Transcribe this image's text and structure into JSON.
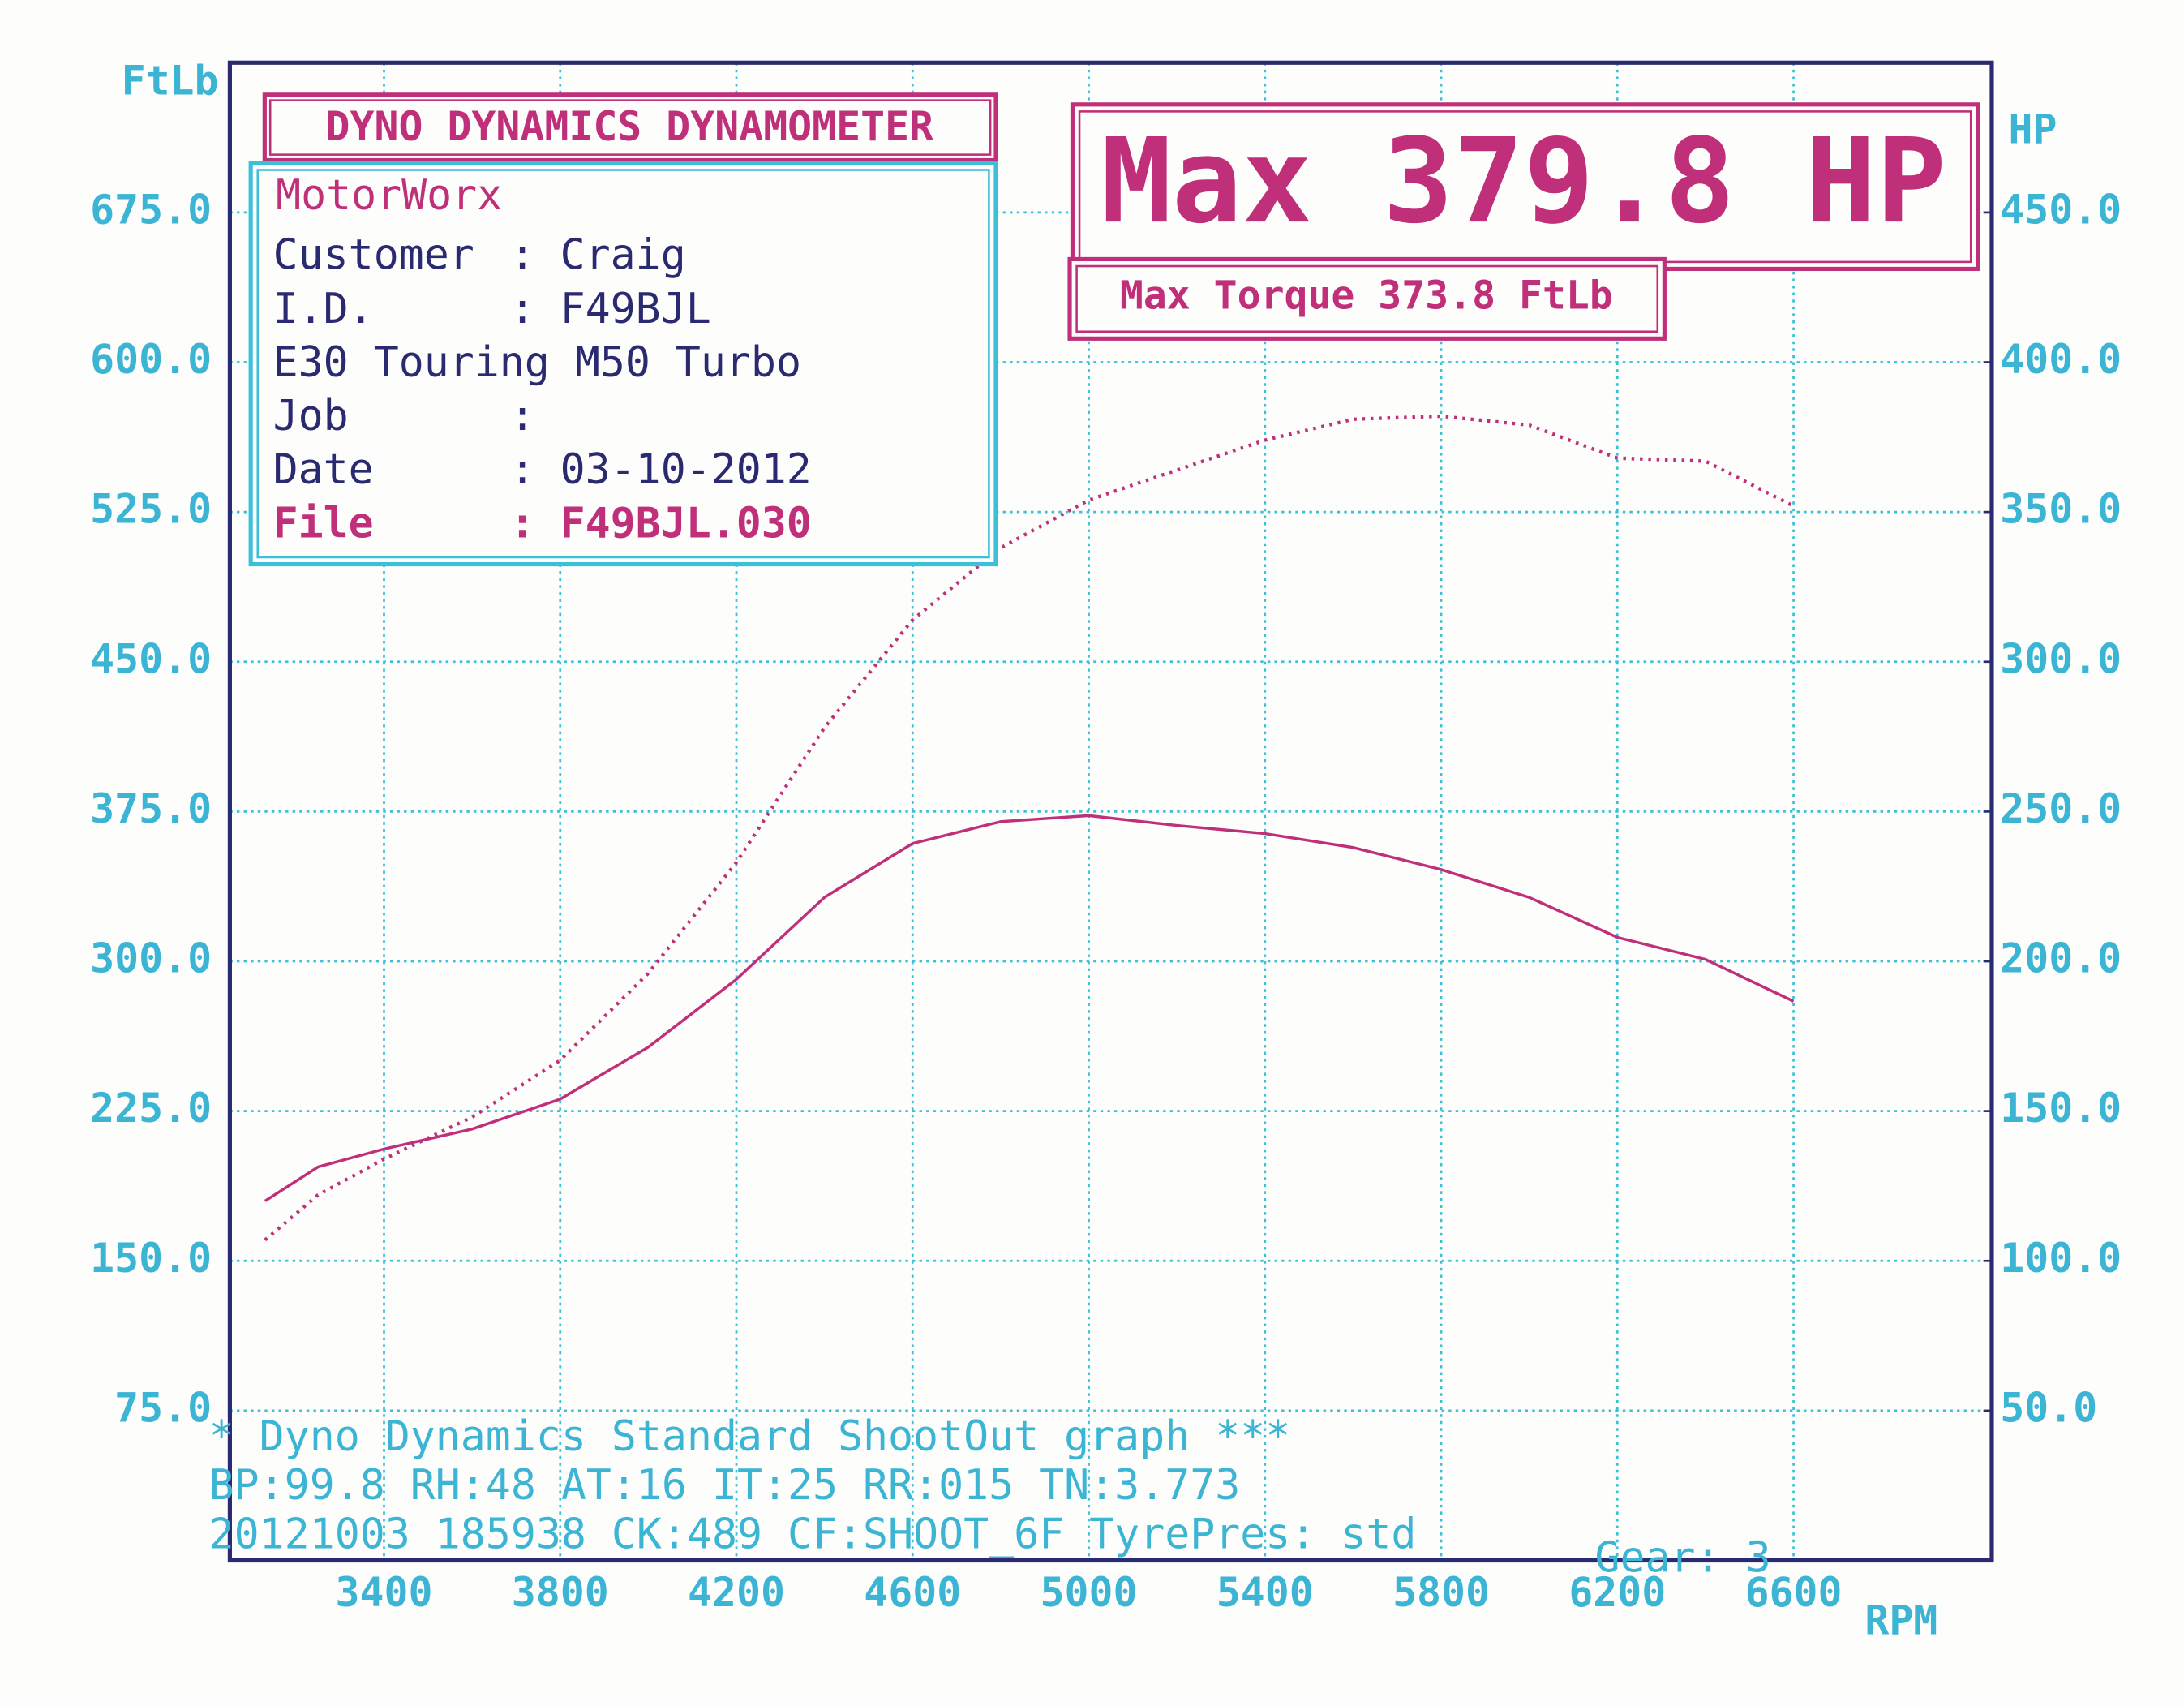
{
  "chart_data": {
    "type": "line",
    "title": "DYNO DYNAMICS DYNAMOMETER",
    "info_panel": {
      "shop": "MotorWorx",
      "rows": [
        {
          "label": "Customer",
          "value": ": Craig"
        },
        {
          "label": "I.D.",
          "value": ": F49BJL"
        },
        {
          "label": "E30 Touring M50 Turbo",
          "value": null
        },
        {
          "label": "Job",
          "value": ":"
        },
        {
          "label": "Date",
          "value": ": 03-10-2012"
        },
        {
          "label": "File",
          "value": ": F49BJL.030"
        }
      ]
    },
    "annotations": [
      "Max 379.8 HP",
      "Max Torque 373.8 FtLb"
    ],
    "footer": [
      "* Dyno Dynamics Standard ShootOut graph ***",
      "BP:99.8  RH:48 AT:16 IT:25  RR:015 TN:3.773",
      "20121003 185938 CK:489 CF:SHOOT_6F TyrePres: std"
    ],
    "gear": "Gear: 3",
    "y_label": "FtLb",
    "y2_label": "HP",
    "x_label": "RPM",
    "x": [
      3130,
      3250,
      3400,
      3600,
      3800,
      4000,
      4200,
      4400,
      4600,
      4800,
      5000,
      5200,
      5400,
      5600,
      5800,
      6000,
      6200,
      6400,
      6600
    ],
    "series": [
      {
        "color": "#c0307a",
        "style": "solid",
        "axis": "y",
        "values": [
          180,
          197,
          206,
          216,
          231,
          257,
          291,
          332,
          359,
          370,
          373,
          368,
          364,
          357,
          346,
          332,
          312,
          301,
          280
        ]
      },
      {
        "color": "#c0307a",
        "style": "dotted",
        "axis": "y2",
        "values": [
          107,
          122,
          134,
          148,
          167,
          196,
          233,
          278,
          314,
          338,
          354,
          364,
          374,
          381,
          382,
          379,
          368,
          367,
          352
        ]
      }
    ],
    "xlim": [
      3050,
      7050
    ],
    "xticks": [
      3400,
      3800,
      4200,
      4600,
      5000,
      5400,
      5800,
      6200,
      6600
    ],
    "ylim": [
      0,
      750
    ],
    "yticks": [
      {
        "value": 75,
        "label": "75.0"
      },
      {
        "value": 150,
        "label": "150.0"
      },
      {
        "value": 225,
        "label": "225.0"
      },
      {
        "value": 300,
        "label": "300.0"
      },
      {
        "value": 375,
        "label": "375.0"
      },
      {
        "value": 450,
        "label": "450.0"
      },
      {
        "value": 525,
        "label": "525.0"
      },
      {
        "value": 600,
        "label": "600.0"
      },
      {
        "value": 675,
        "label": "675.0"
      }
    ],
    "y2lim": [
      0,
      500
    ],
    "y2ticks": [
      {
        "value": 50,
        "label": "50.0"
      },
      {
        "value": 100,
        "label": "100.0"
      },
      {
        "value": 150,
        "label": "150.0"
      },
      {
        "value": 200,
        "label": "200.0"
      },
      {
        "value": 250,
        "label": "250.0"
      },
      {
        "value": 300,
        "label": "300.0"
      },
      {
        "value": 350,
        "label": "350.0"
      },
      {
        "value": 400,
        "label": "400.0"
      },
      {
        "value": 450,
        "label": "450.0"
      }
    ],
    "grid": true,
    "grid_color": "#3cc0d8",
    "frame_color": "#2a2a70",
    "accent_color": "#c0307a"
  }
}
